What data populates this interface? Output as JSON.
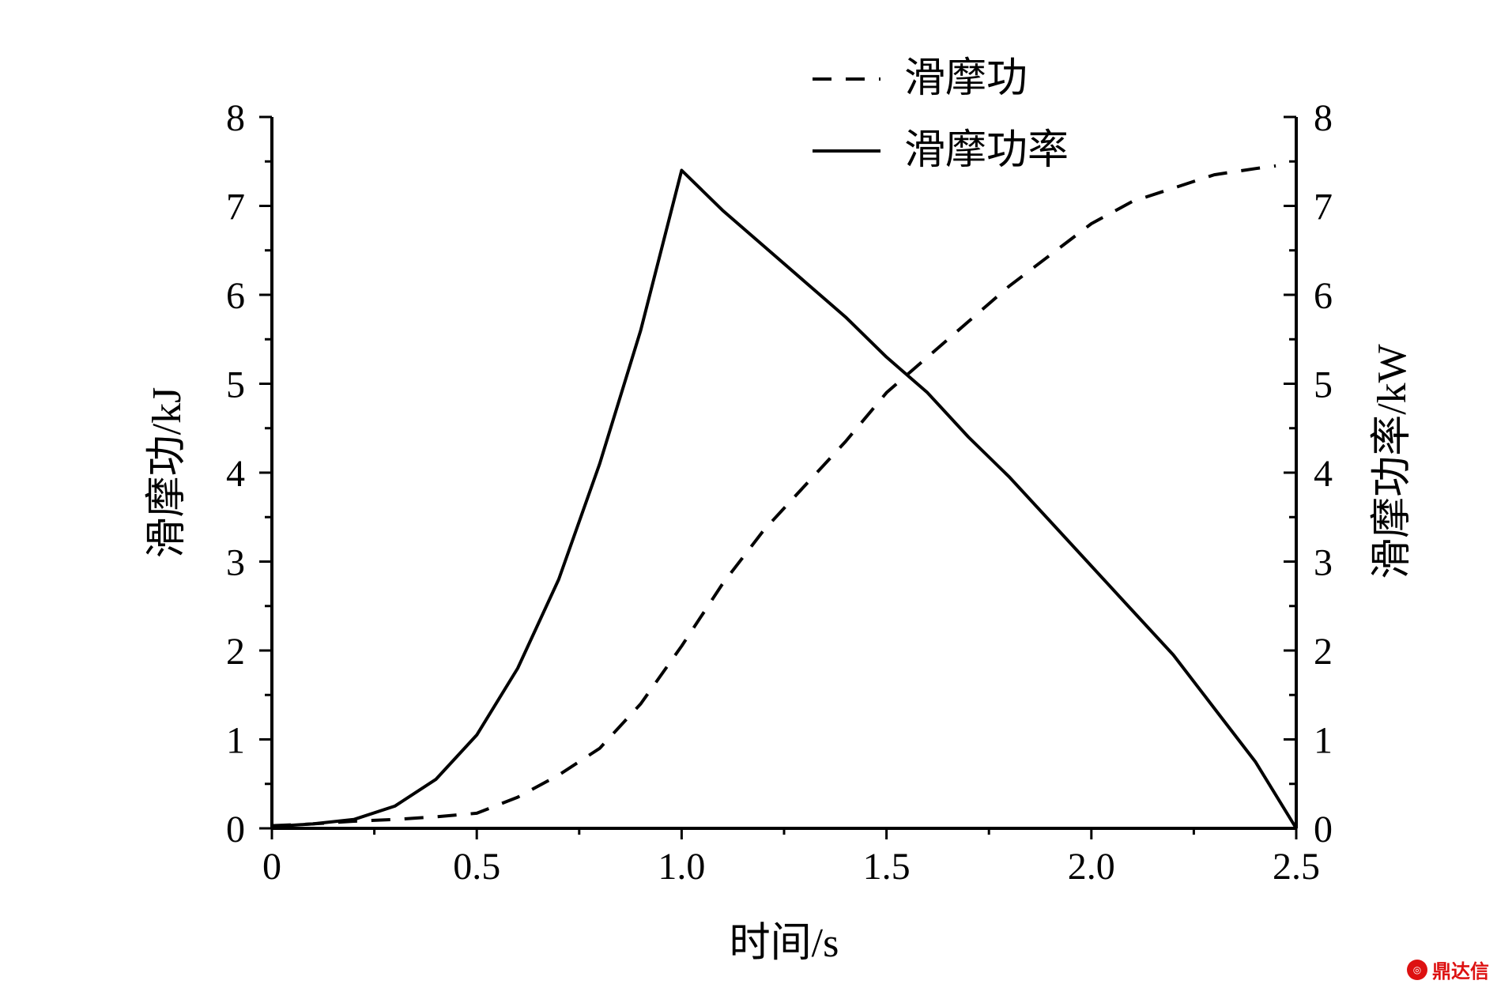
{
  "chart_data": {
    "type": "line",
    "xlabel": "时间/s",
    "ylabel_left": "滑摩功/kJ",
    "ylabel_right": "滑摩功率/kW",
    "xlim": [
      0,
      2.5
    ],
    "ylim_left": [
      0,
      8
    ],
    "ylim_right": [
      0,
      8
    ],
    "x_ticks": [
      "0",
      "0.5",
      "1.0",
      "1.5",
      "2.0",
      "2.5"
    ],
    "y_ticks": [
      "0",
      "1",
      "2",
      "3",
      "4",
      "5",
      "6",
      "7",
      "8"
    ],
    "grid": false,
    "legend_position": "top-center",
    "series": [
      {
        "name": "滑摩功",
        "axis": "left",
        "style": "dashed",
        "x": [
          0,
          0.1,
          0.2,
          0.3,
          0.4,
          0.5,
          0.6,
          0.7,
          0.8,
          0.9,
          1.0,
          1.1,
          1.2,
          1.3,
          1.4,
          1.5,
          1.6,
          1.7,
          1.8,
          1.9,
          2.0,
          2.1,
          2.2,
          2.3,
          2.4,
          2.45
        ],
        "values": [
          0.03,
          0.05,
          0.08,
          0.1,
          0.13,
          0.17,
          0.35,
          0.6,
          0.9,
          1.4,
          2.05,
          2.75,
          3.35,
          3.85,
          4.35,
          4.9,
          5.3,
          5.7,
          6.1,
          6.45,
          6.8,
          7.05,
          7.2,
          7.35,
          7.42,
          7.45
        ]
      },
      {
        "name": "滑摩功率",
        "axis": "right",
        "style": "solid",
        "x": [
          0,
          0.1,
          0.2,
          0.3,
          0.4,
          0.5,
          0.6,
          0.7,
          0.8,
          0.9,
          1.0,
          1.1,
          1.2,
          1.3,
          1.4,
          1.5,
          1.6,
          1.7,
          1.8,
          1.9,
          2.0,
          2.1,
          2.2,
          2.3,
          2.4,
          2.5
        ],
        "values": [
          0.02,
          0.05,
          0.1,
          0.25,
          0.55,
          1.05,
          1.8,
          2.8,
          4.1,
          5.6,
          7.4,
          6.95,
          6.55,
          6.15,
          5.75,
          5.3,
          4.9,
          4.4,
          3.95,
          3.45,
          2.95,
          2.45,
          1.95,
          1.35,
          0.75,
          0.0
        ]
      }
    ]
  },
  "watermark": {
    "text": "鼎达信",
    "icon": "logo-icon"
  }
}
